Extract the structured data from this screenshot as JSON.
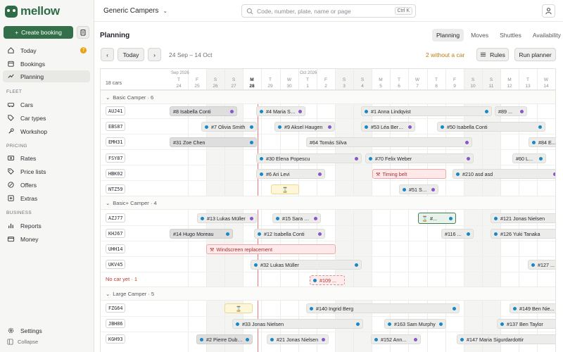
{
  "app": {
    "logo_text": "mellow",
    "company": "Generic Campers"
  },
  "sidebar": {
    "create_label": "Create booking",
    "items": [
      {
        "label": "Today",
        "badge": "7"
      },
      {
        "label": "Bookings"
      },
      {
        "label": "Planning"
      }
    ],
    "fleet_title": "FLEET",
    "fleet": [
      "Cars",
      "Car types",
      "Workshop"
    ],
    "pricing_title": "PRICING",
    "pricing": [
      "Rates",
      "Price lists",
      "Offers",
      "Extras"
    ],
    "business_title": "BUSINESS",
    "business": [
      "Reports",
      "Money"
    ],
    "settings_label": "Settings",
    "collapse_label": "Collapse"
  },
  "search": {
    "placeholder": "Code, number, plate, name or page",
    "shortcut": "Ctrl K"
  },
  "page": {
    "title": "Planning",
    "tabs": [
      "Planning",
      "Moves",
      "Shuttles",
      "Availability"
    ],
    "today_label": "Today",
    "date_range": "24 Sep – 14 Oct",
    "without_car": "2 without a car",
    "rules_label": "Rules",
    "run_label": "Run planner"
  },
  "calendar": {
    "cars_count": "18 cars",
    "month_sep": "Sep 2026",
    "month_oct": "Oct 2026",
    "days": [
      {
        "w": "T",
        "d": "24"
      },
      {
        "w": "F",
        "d": "25"
      },
      {
        "w": "S",
        "d": "26"
      },
      {
        "w": "S",
        "d": "27"
      },
      {
        "w": "M",
        "d": "28"
      },
      {
        "w": "T",
        "d": "29"
      },
      {
        "w": "W",
        "d": "30"
      },
      {
        "w": "T",
        "d": "1"
      },
      {
        "w": "F",
        "d": "2"
      },
      {
        "w": "S",
        "d": "3"
      },
      {
        "w": "S",
        "d": "4"
      },
      {
        "w": "M",
        "d": "5"
      },
      {
        "w": "T",
        "d": "6"
      },
      {
        "w": "W",
        "d": "7"
      },
      {
        "w": "T",
        "d": "8"
      },
      {
        "w": "F",
        "d": "9"
      },
      {
        "w": "S",
        "d": "10"
      },
      {
        "w": "S",
        "d": "11"
      },
      {
        "w": "M",
        "d": "12"
      },
      {
        "w": "T",
        "d": "13"
      },
      {
        "w": "W",
        "d": "14"
      }
    ]
  },
  "groups": {
    "basic": "Basic Camper · 6",
    "basic_plus": "Basic+ Camper · 4",
    "nocar": "No car yet · 1",
    "large": "Large Camper · 5"
  },
  "plates": [
    "AUJ41",
    "EBS87",
    "EMH31",
    "FSY87",
    "HBK02",
    "NTZ59",
    "AZJ77",
    "KHJ67",
    "UHH14",
    "UKV45",
    "FZG64",
    "JBH86",
    "KGH93"
  ],
  "bookings": {
    "b1": "#8 Isabella Conti",
    "b2": "#4 Maria Sig...",
    "b3": "#1 Anna Lindqvist",
    "b4": "#89 ...",
    "b5": "#7 Olivia Smith",
    "b6": "#9 Aksel Haugen",
    "b7": "#53 Léa Bernard",
    "b8": "#50 Isabella Conti",
    "b9": "#31 Zoe Chen",
    "b10": "#64 Tomás Silva",
    "b11": "#84 E...",
    "b12": "#30 Elena Popescu",
    "b13": "#70 Felix Weber",
    "b14": "#60 L...",
    "b15": "#6 Ari Levi",
    "b16": "Timing belt",
    "b17": "#210 asd asd",
    "b18": "#51 Sar...",
    "b19": "#13 Lukas Müller",
    "b20": "#15 Sara Rossi",
    "b21": "#...",
    "b22": "#121 Jonas Nielsen",
    "b23": "#14 Hugo Moreau",
    "b24": "#12 Isabella Conti",
    "b25": "#116 ...",
    "b26": "#126 Yuki Tanaka",
    "b27": "Windscreen replacement",
    "b28": "#32 Lukas Müller",
    "b29": "#127 ...",
    "b30": "#109 ...",
    "b31": "#140 Ingrid Berg",
    "b32": "#149 Ben Nie...",
    "b33": "#33 Jonas Nielsen",
    "b34": "#163 Sam Murphy",
    "b35": "#137 Ben Taylor",
    "b36": "#2 Pierre Dubois",
    "b37": "#21 Jonas Nielsen",
    "b38": "#152 Ann...",
    "b39": "#147 Maria Sigurdardottir"
  },
  "colors": {
    "brand": "#2f6b46",
    "today_line": "#f07a80",
    "dot_purple": "#8a56c8",
    "dot_blue": "#1a87c2",
    "warning": "#c07a10"
  }
}
